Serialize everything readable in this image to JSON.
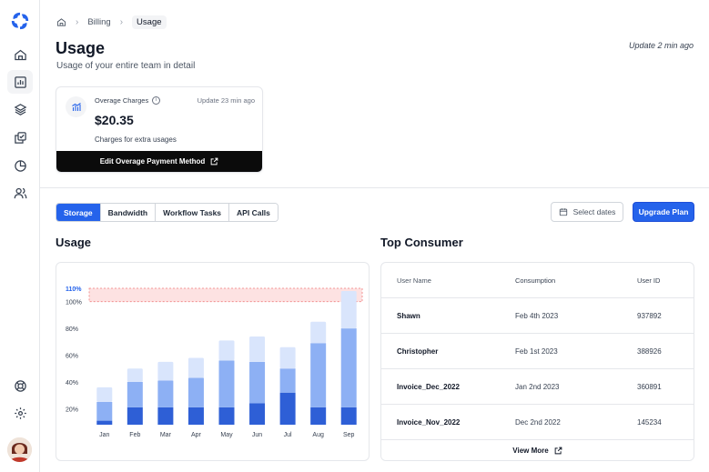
{
  "sidebar": {
    "logo": "brand-logo",
    "items": [
      {
        "name": "home",
        "icon": "home-icon"
      },
      {
        "name": "analytics",
        "icon": "bar-chart-icon",
        "active": true
      },
      {
        "name": "layers",
        "icon": "layers-icon"
      },
      {
        "name": "copy",
        "icon": "copy-check-icon"
      },
      {
        "name": "reports",
        "icon": "pie-chart-icon"
      },
      {
        "name": "users",
        "icon": "users-icon"
      }
    ],
    "bottom_items": [
      {
        "name": "support",
        "icon": "life-buoy-icon"
      },
      {
        "name": "settings",
        "icon": "gear-icon"
      }
    ]
  },
  "breadcrumb": {
    "items": [
      "Billing",
      "Usage"
    ],
    "home_icon": "home-icon"
  },
  "header": {
    "title": "Usage",
    "subtitle": "Usage of your entire team in detail",
    "updated": "Update 2 min ago"
  },
  "overage": {
    "label": "Overage Charges",
    "updated": "Update 23 min ago",
    "amount": "$20.35",
    "description": "Charges for extra usages",
    "button_label": "Edit Overage Payment Method"
  },
  "tabs": [
    {
      "label": "Storage",
      "active": true
    },
    {
      "label": "Bandwidth",
      "active": false
    },
    {
      "label": "Workflow Tasks",
      "active": false
    },
    {
      "label": "API Calls",
      "active": false
    }
  ],
  "actions": {
    "select_dates": "Select dates",
    "upgrade": "Upgrade Plan"
  },
  "usage_section": {
    "title": "Usage"
  },
  "consumer_section": {
    "title": "Top Consumer"
  },
  "chart_data": {
    "type": "bar",
    "categories": [
      "Jan",
      "Feb",
      "Mar",
      "Apr",
      "May",
      "Jun",
      "Jul",
      "Aug",
      "Sep"
    ],
    "series": [
      {
        "values": [
          3,
          13,
          13,
          13,
          13,
          16,
          24,
          13,
          13
        ]
      },
      {
        "values": [
          14,
          19,
          20,
          22,
          35,
          31,
          18,
          48,
          59
        ]
      },
      {
        "values": [
          11,
          10,
          14,
          15,
          15,
          19,
          16,
          16,
          28
        ]
      }
    ],
    "yticks": [
      "20%",
      "40%",
      "60%",
      "80%",
      "100%",
      "110%"
    ],
    "ytick_values": [
      20,
      40,
      60,
      80,
      100,
      110
    ],
    "ylim": [
      8,
      110
    ],
    "threshold_band": [
      100,
      110
    ],
    "colors": {
      "dark": "#2e5fd6",
      "mid": "#8db0f4",
      "light": "#d9e5fc",
      "band": "#fde2e2",
      "band_border": "#ef7f7f",
      "highlight_tick": "#2563eb"
    }
  },
  "table": {
    "headers": [
      "User Name",
      "Consumption",
      "User ID"
    ],
    "rows": [
      {
        "name": "Shawn",
        "date": "Feb 4th 2023",
        "id": "937892"
      },
      {
        "name": "Christopher",
        "date": "Feb 1st 2023",
        "id": "388926"
      },
      {
        "name": "Invoice_Dec_2022",
        "date": "Jan 2nd 2023",
        "id": "360891"
      },
      {
        "name": "Invoice_Nov_2022",
        "date": "Dec 2nd 2022",
        "id": "145234"
      }
    ],
    "view_more": "View More"
  }
}
